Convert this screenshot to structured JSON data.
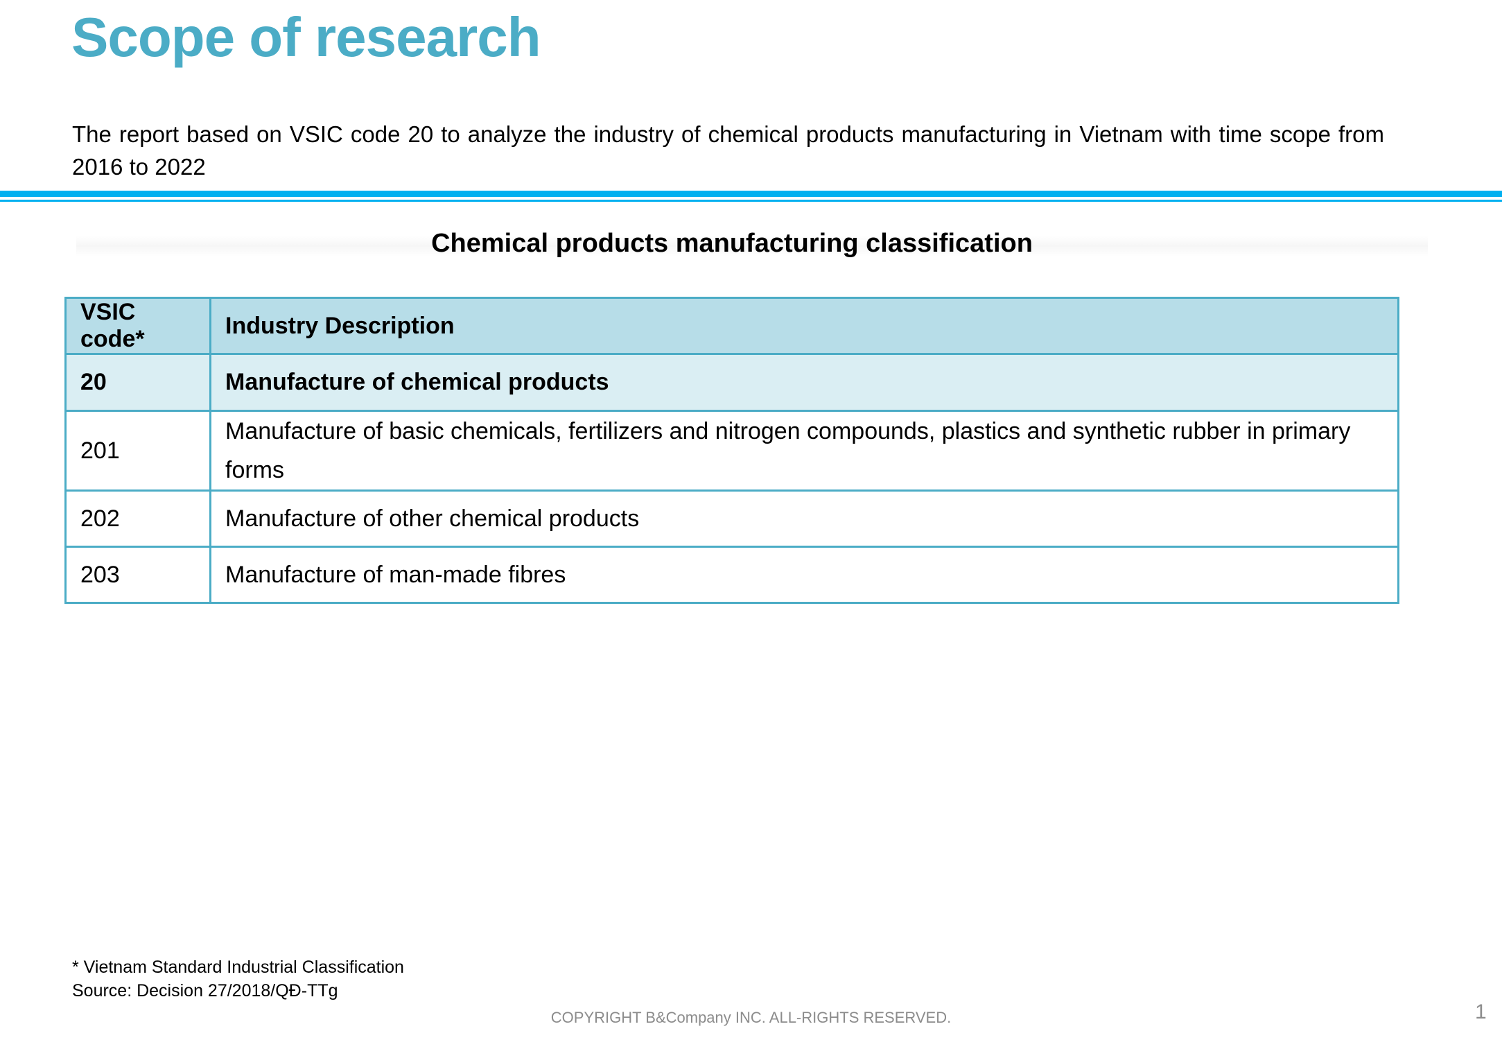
{
  "title": "Scope of research",
  "intro": "The report based on VSIC code 20 to analyze the industry of chemical products manufacturing in Vietnam with time scope from 2016 to 2022",
  "table_title": "Chemical products manufacturing classification",
  "table": {
    "headers": [
      "VSIC code*",
      "Industry Description"
    ],
    "rows": [
      {
        "code": "20",
        "description": "Manufacture of chemical products"
      },
      {
        "code": "201",
        "description": "Manufacture of basic chemicals, fertilizers and nitrogen compounds, plastics and synthetic rubber in primary forms"
      },
      {
        "code": "202",
        "description": "Manufacture of other chemical products"
      },
      {
        "code": "203",
        "description": "Manufacture of man-made fibres"
      }
    ]
  },
  "footnote": "* Vietnam Standard Industrial Classification",
  "source": "Source: Decision 27/2018/QĐ-TTg",
  "copyright": "COPYRIGHT B&Company INC. ALL-RIGHTS RESERVED.",
  "page_number": "1",
  "colors": {
    "accent": "#4bacc6",
    "rule": "#00b0f0",
    "header_bg": "#b7dde8",
    "highlight_row_bg": "#daeef3"
  }
}
